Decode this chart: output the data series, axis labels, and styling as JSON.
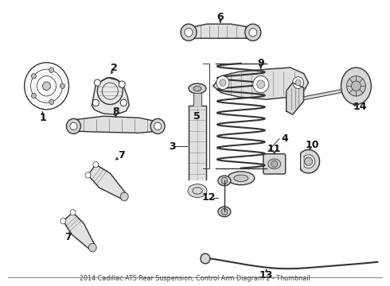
{
  "background_color": "#ffffff",
  "line_color": "#333333",
  "label_color": "#111111",
  "label_fontsize": 7.5,
  "bold_fontsize": 9.0,
  "figsize": [
    4.9,
    3.6
  ],
  "dpi": 100,
  "caption": "2014 Cadillac ATS Rear Suspension, Control Arm Diagram 2 - Thumbnail",
  "caption_fontsize": 5.8
}
